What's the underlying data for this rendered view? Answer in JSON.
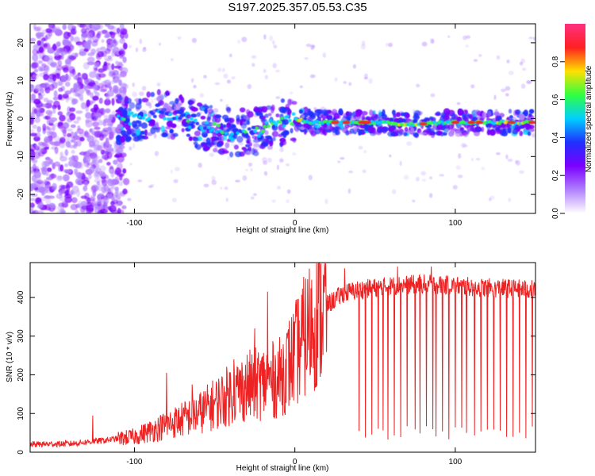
{
  "title": "S197.2025.357.05.53.C35",
  "colors": {
    "snr_line": "#ee2222",
    "background": "#ffffff",
    "axis": "#000000"
  },
  "chart_data": [
    {
      "type": "heatmap",
      "name": "spectrogram",
      "xlabel": "Height of straight line (km)",
      "ylabel": "Frequency (Hz)",
      "xlim": [
        -165,
        150
      ],
      "ylim": [
        -25,
        25
      ],
      "x_ticks": [
        -100,
        0,
        100
      ],
      "y_ticks": [
        -20,
        -10,
        0,
        10,
        20
      ],
      "colorbar": {
        "label": "Normalized spectral amplitude",
        "range": [
          0,
          1
        ],
        "ticks": [
          0.0,
          0.2,
          0.4,
          0.6,
          0.8
        ],
        "tick_labels": [
          "0.0",
          "0.2",
          "0.4",
          "0.6",
          "0.8"
        ],
        "colormap": [
          "#ffffff",
          "#b080ff",
          "#7a00ff",
          "#2030ff",
          "#00d0ff",
          "#30ff40",
          "#ffe000",
          "#ff2020",
          "#ff3080"
        ]
      },
      "ridge": [
        {
          "x": -110,
          "y": -0.5
        },
        {
          "x": -80,
          "y": 1.5
        },
        {
          "x": -60,
          "y": -2
        },
        {
          "x": -40,
          "y": -3.5
        },
        {
          "x": -25,
          "y": -3.5
        },
        {
          "x": -12,
          "y": -1.5
        },
        {
          "x": 0,
          "y": 0
        },
        {
          "x": 10,
          "y": -1
        },
        {
          "x": 25,
          "y": -1
        },
        {
          "x": 50,
          "y": -1
        },
        {
          "x": 75,
          "y": -1.5
        },
        {
          "x": 100,
          "y": -1
        },
        {
          "x": 125,
          "y": -1
        },
        {
          "x": 148,
          "y": -1
        }
      ],
      "hot_spots_x": [
        25,
        32,
        42,
        45,
        80,
        100,
        110,
        115,
        135,
        148
      ]
    },
    {
      "type": "line",
      "name": "snr",
      "xlabel": "Height of straight line (km)",
      "ylabel": "SNR (10 * v/v)",
      "xlim": [
        -165,
        150
      ],
      "ylim": [
        0,
        490
      ],
      "x_ticks": [
        -100,
        0,
        100
      ],
      "y_ticks": [
        0,
        100,
        200,
        300,
        400
      ],
      "series": [
        {
          "name": "SNR",
          "envelope": {
            "x": [
              -165,
              -140,
              -120,
              -100,
              -80,
              -60,
              -40,
              -30,
              -20,
              -10,
              0,
              5,
              10,
              15,
              20,
              25,
              30,
              40,
              60,
              80,
              100,
              120,
              150
            ],
            "y": [
              20,
              22,
              30,
              40,
              70,
              100,
              150,
              170,
              180,
              190,
              250,
              290,
              330,
              360,
              380,
              395,
              410,
              420,
              430,
              435,
              430,
              425,
              420
            ]
          },
          "spikes": [
            {
              "x": -126,
              "y": 95
            },
            {
              "x": -80,
              "y": 205
            },
            {
              "x": -64,
              "y": 175
            },
            {
              "x": -38,
              "y": 240
            },
            {
              "x": -25,
              "y": 320
            },
            {
              "x": -17,
              "y": 415
            },
            {
              "x": 31,
              "y": 475
            },
            {
              "x": 64,
              "y": 480
            },
            {
              "x": 85,
              "y": 480
            },
            {
              "x": 128,
              "y": 470
            }
          ],
          "dropouts_x": [
            40,
            44,
            48,
            52,
            55,
            58,
            62,
            66,
            70,
            75,
            78,
            82,
            86,
            88,
            92,
            96,
            100,
            104,
            107,
            112,
            116,
            120,
            124,
            128,
            132,
            136,
            140,
            144,
            148
          ]
        }
      ]
    }
  ]
}
